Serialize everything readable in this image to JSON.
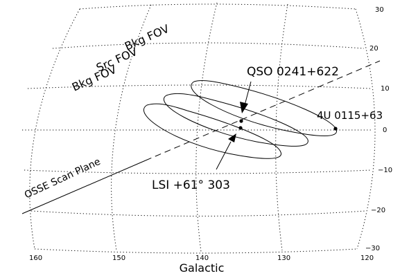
{
  "figure": {
    "xlabel": "Galactic",
    "longitude_ticks": [
      "160",
      "150",
      "140",
      "130",
      "120"
    ],
    "latitude_ticks": [
      "30",
      "20",
      "10",
      "0",
      "−10",
      "−20",
      "−30"
    ]
  },
  "labels": {
    "bkg_fov_upper": "Bkg FOV",
    "src_fov": "Src FOV",
    "bkg_fov_lower": "Bkg FOV",
    "scan_plane": "OSSE Scan Plane",
    "qso": "QSO 0241+622",
    "lsi": "LSI +61° 303",
    "x_ray_source": "4U 0115+63"
  },
  "sources": [
    {
      "name": "QSO 0241+622",
      "l": 135.2,
      "b": 2.3
    },
    {
      "name": "LSI +61° 303",
      "l": 135.7,
      "b": 1.0
    },
    {
      "name": "4U 0115+63",
      "l": 124.0,
      "b": 0.3
    }
  ],
  "colors": {
    "ink": "#000000",
    "background": "#ffffff"
  }
}
